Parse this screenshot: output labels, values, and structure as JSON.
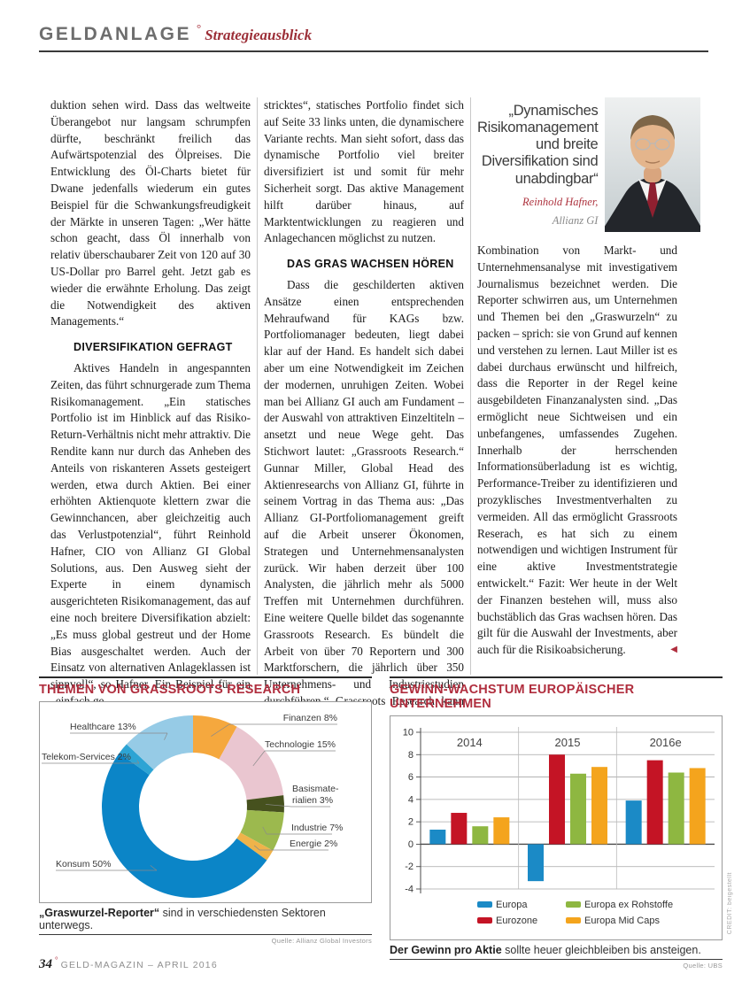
{
  "header": {
    "section": "GELDANLAGE",
    "degree": "°",
    "subsection": "Strategieausblick"
  },
  "article": {
    "end_marker": "◀",
    "col1": {
      "p1": "duktion sehen wird. Dass das weltweite Überangebot nur langsam schrumpfen dürfte, beschränkt freilich das Aufwärtspotenzial des Ölpreises. Die Entwicklung des Öl-Charts bietet für Dwane jedenfalls wiederum ein gutes Beispiel für die Schwankungsfreudigkeit der Märkte in unseren Tagen: „Wer hätte schon geacht, dass Öl innerhalb von relativ überschaubarer Zeit von 120 auf 30 US-Dollar pro Barrel geht. Jetzt gab es wieder die erwähnte Erholung. Das zeigt die Notwendigkeit des aktiven Managements.“",
      "heading": "DIVERSIFIKATION GEFRAGT",
      "p2": "Aktives Handeln in angespannten Zeiten, das führt schnurgerade zum Thema Risikomanagement. „Ein statisches Portfolio ist im Hinblick auf das Risiko-Return-Verhältnis nicht mehr attraktiv. Die Rendite kann nur durch das Anheben des Anteils von riskanteren Assets gesteigert werden, etwa durch Aktien. Bei einer erhöhten Aktienquote klettern zwar die Gewinnchancen, aber gleichzeitig auch das Verlustpotenzial“, führt Reinhold Hafner, CIO von Allianz GI Global Solutions, aus. Den Ausweg sieht der Experte in einem dynamisch ausgerichteten Risikomanagement, das auf eine noch breitere Diversifikation abzielt: „Es muss global gestreut und der Home Bias ausgeschaltet werden. Auch der Einsatz von alternativen Anlageklassen ist sinnvoll“, so Hafner. Ein Beispiel für ein „einfach ge-"
    },
    "col2": {
      "p1": "stricktes“, statisches Portfolio findet sich auf Seite 33 links unten, die dynamischere Variante rechts. Man sieht sofort, dass das dynamische Portfolio viel breiter diversifiziert ist und somit für mehr Sicherheit sorgt. Das aktive Management hilft darüber hinaus, auf Marktentwicklungen zu reagieren und Anlagechancen möglichst zu nutzen.",
      "heading": "DAS GRAS WACHSEN HÖREN",
      "p2": "Dass die geschilderten aktiven Ansätze einen entsprechenden Mehraufwand für KAGs bzw. Portfoliomanager bedeuten, liegt dabei klar auf der Hand. Es handelt sich dabei aber um eine Notwendigkeit im Zeichen der modernen, unruhigen Zeiten. Wobei man bei Allianz GI auch am Fundament – der Auswahl von attraktiven Einzeltiteln – ansetzt und neue Wege geht. Das Stichwort lautet: „Grassroots Research.“ Gunnar Miller, Global Head des Aktienresearchs von Allianz GI, führte in seinem Vortrag in das Thema aus: „Das Allianz GI-Portfoliomanagement greift auf die Arbeit unserer Ökonomen, Strategen und Unternehmensanalysten zurück. Wir haben derzeit über 100 Analysten, die jährlich mehr als 5000 Treffen mit Unternehmen durchführen. Eine weitere Quelle bildet das sogenannte Grassroots Research. Es bündelt die Arbeit von über 70 Reportern und 300 Marktforschern, die jährlich über 350 Unternehmens- und Industriestudien durchführen.“ Grassroots Research kann als"
    },
    "col3": {
      "quote": "„Dynamisches Risikomanagement und breite Diversifikation sind unabdingbar“",
      "quote_author": "Reinhold Hafner,",
      "quote_org": "Allianz GI",
      "p1": "Kombination von Markt- und Unternehmensanalyse mit investigativem Journalismus bezeichnet werden. Die Reporter schwirren aus, um Unternehmen und Themen bei den „Graswurzeln“ zu packen – sprich: sie von Grund auf kennen und verstehen zu lernen. Laut Miller ist es dabei durchaus erwünscht und hilfreich, dass die Reporter in der Regel keine ausgebildeten Finanzanalysten sind. „Das ermöglicht neue Sichtweisen und ein unbefangenes, umfassendes Zugehen. Innerhalb der herrschenden Informationsüberladung ist es wichtig, Performance-Treiber zu identifizieren und prozyklisches Investmentverhalten zu vermeiden. All das ermöglicht Grassroots Reserach, es hat sich zu einem notwendigen und wichtigen Instrument für eine aktive Investmentstrategie entwickelt.“ Fazit: Wer heute in der Welt der Finanzen bestehen will, muss also buchstäblich das Gras wachsen hören. Das gilt für die Auswahl der Investments, aber auch für die Risikoabsicherung."
    }
  },
  "chart_data": [
    {
      "type": "pie",
      "title": "THEMEN VON GRASSROOTS RESEARCH",
      "slices": [
        {
          "label": "Finanzen 8%",
          "value": 8,
          "color": "#F5A83E"
        },
        {
          "label": "Technologie 15%",
          "value": 15,
          "color": "#EAC6D0"
        },
        {
          "label": "Basismate-\nrialien 3%",
          "value": 3,
          "color": "#46511E"
        },
        {
          "label": "Industrie 7%",
          "value": 7,
          "color": "#9CB94E"
        },
        {
          "label": "Energie 2%",
          "value": 2,
          "color": "#EFB34A"
        },
        {
          "label": "Konsum 50%",
          "value": 50,
          "color": "#0B85C7"
        },
        {
          "label": "Telekom-Services 2%",
          "value": 2,
          "color": "#2DA4D4"
        },
        {
          "label": "Healthcare 13%",
          "value": 13,
          "color": "#96CBE6"
        }
      ],
      "caption_bold": "„Graswurzel-Reporter“",
      "caption_rest": " sind in verschiedensten Sektoren unterwegs.",
      "source": "Quelle: Allianz Global Investors"
    },
    {
      "type": "bar",
      "title": "GEWINN-WACHSTUM EUROPÄISCHER UNTERNEHMEN",
      "categories": [
        "2014",
        "2015",
        "2016e"
      ],
      "series": [
        {
          "name": "Europa",
          "color": "#1B8AC6",
          "values": [
            1.3,
            -3.3,
            3.9
          ]
        },
        {
          "name": "Eurozone",
          "color": "#C41425",
          "values": [
            2.8,
            8.0,
            7.5
          ]
        },
        {
          "name": "Europa ex Rohstoffe",
          "color": "#8EB741",
          "values": [
            1.6,
            6.3,
            6.4
          ]
        },
        {
          "name": "Europa Mid Caps",
          "color": "#F4A41D",
          "values": [
            2.4,
            6.9,
            6.8
          ]
        }
      ],
      "ylim": [
        -4,
        10
      ],
      "yticks": [
        10,
        8,
        6,
        4,
        2,
        0,
        -2,
        -4
      ],
      "grid": true,
      "legend_position": "bottom",
      "caption_bold": "Der Gewinn pro Aktie",
      "caption_rest": " sollte heuer gleichbleiben bis ansteigen.",
      "source": "Quelle: UBS"
    }
  ],
  "footer": {
    "page_number": "34",
    "degree": "°",
    "magazine": "GELD-MAGAZIN – APRIL 2016"
  },
  "credit": "CREDIT: beigestellt"
}
